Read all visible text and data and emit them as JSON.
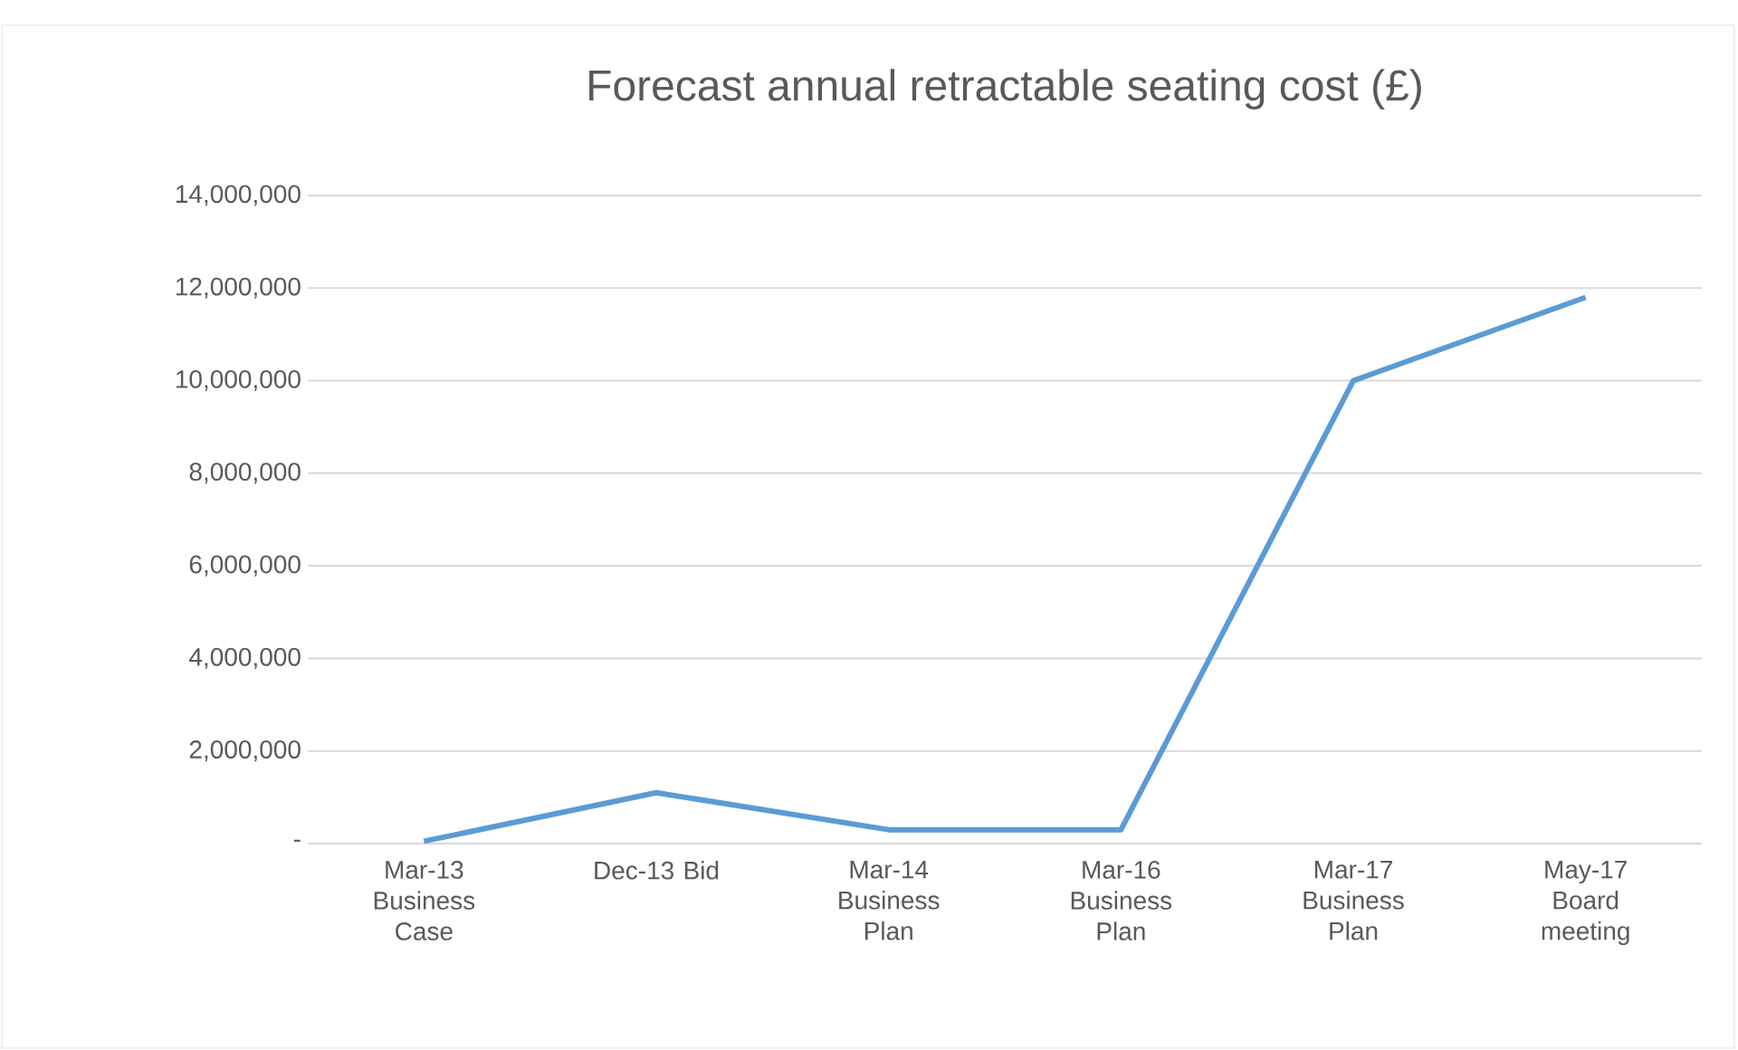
{
  "chart_data": {
    "type": "line",
    "title": "Forecast annual retractable seating cost (£)",
    "categories": [
      "Mar-13 Business Case",
      "Dec-13 Bid",
      "Mar-14 Business Plan",
      "Mar-16 Business Plan",
      "Mar-17 Business Plan",
      "May-17 Board meeting"
    ],
    "series": [
      {
        "color": "#5b9bd5",
        "values": [
          50000,
          1100000,
          300000,
          300000,
          10000000,
          11800000
        ]
      }
    ],
    "ylim": [
      0,
      14000000
    ],
    "yticks": [
      {
        "value": 0,
        "label": "-"
      },
      {
        "value": 2000000,
        "label": "2,000,000"
      },
      {
        "value": 4000000,
        "label": "4,000,000"
      },
      {
        "value": 6000000,
        "label": "6,000,000"
      },
      {
        "value": 8000000,
        "label": "8,000,000"
      },
      {
        "value": 10000000,
        "label": "10,000,000"
      },
      {
        "value": 12000000,
        "label": "12,000,000"
      },
      {
        "value": 14000000,
        "label": "14,000,000"
      }
    ],
    "grid": "y",
    "marker": "none",
    "line_style": "solid"
  }
}
